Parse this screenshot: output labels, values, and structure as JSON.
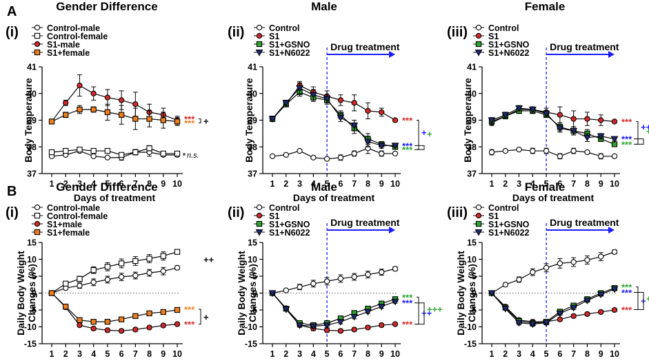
{
  "row_labels": [
    "A",
    "B"
  ],
  "column_titles": [
    "Gender Difference",
    "Male",
    "Female"
  ],
  "colors": {
    "red": "#d62828",
    "orange": "#f07f1e",
    "green": "#2aa52a",
    "navy": "#1f2a7a",
    "blue": "#1a1aff",
    "black": "#000000"
  },
  "chart_data": [
    {
      "id": "A-i",
      "type": "line",
      "panel_label": "(i)",
      "title": "Gender Difference",
      "xlabel": "Days of treatment",
      "ylabel": "Body Temperature",
      "x": [
        1,
        2,
        3,
        4,
        5,
        6,
        7,
        8,
        9,
        10
      ],
      "ylim": [
        37,
        41
      ],
      "yticks": [
        37,
        38,
        39,
        40,
        41
      ],
      "series": [
        {
          "name": "Control-male",
          "marker": "circle",
          "fill": "#ffffff",
          "values": [
            37.65,
            37.7,
            37.85,
            37.65,
            37.6,
            37.6,
            37.8,
            37.8,
            37.7,
            37.7
          ],
          "err": [
            0.05,
            0.05,
            0.05,
            0.05,
            0.05,
            0.1,
            0.1,
            0.15,
            0.05,
            0.05
          ]
        },
        {
          "name": "Control-female",
          "marker": "square",
          "fill": "#ffffff",
          "values": [
            37.8,
            37.85,
            37.9,
            37.85,
            37.85,
            37.7,
            37.8,
            37.95,
            37.75,
            37.75
          ],
          "err": [
            0.05,
            0.05,
            0.05,
            0.05,
            0.05,
            0.05,
            0.1,
            0.1,
            0.05,
            0.05
          ]
        },
        {
          "name": "S1-male",
          "marker": "circle",
          "fill": "#d62828",
          "values": [
            38.95,
            39.65,
            40.3,
            40.0,
            39.85,
            39.75,
            39.6,
            39.3,
            39.2,
            39.0
          ],
          "err": [
            0.05,
            0.1,
            0.4,
            0.25,
            0.3,
            0.35,
            0.45,
            0.3,
            0.25,
            0.15
          ]
        },
        {
          "name": "S1+female",
          "marker": "square",
          "fill": "#f07f1e",
          "values": [
            38.95,
            39.2,
            39.4,
            39.4,
            39.3,
            39.2,
            39.05,
            39.05,
            39.0,
            38.95
          ],
          "err": [
            0.05,
            0.1,
            0.15,
            0.1,
            0.3,
            0.35,
            0.4,
            0.3,
            0.3,
            0.15
          ]
        }
      ],
      "sig_labels": [
        {
          "text": "***",
          "color": "red",
          "y": 39.05
        },
        {
          "text": "***",
          "color": "orange",
          "y": 38.9
        },
        {
          "text": "+",
          "color": "black",
          "y": 38.97
        },
        {
          "text": "n.s.",
          "color": "black",
          "y": 37.72
        }
      ]
    },
    {
      "id": "A-ii",
      "type": "line",
      "panel_label": "(ii)",
      "title": "Male",
      "xlabel": "Days of treatment",
      "ylabel": "Body Temperature",
      "x": [
        1,
        2,
        3,
        4,
        5,
        6,
        7,
        8,
        9,
        10
      ],
      "ylim": [
        37,
        41
      ],
      "yticks": [
        37,
        38,
        39,
        40,
        41
      ],
      "annotation": "Drug treatment",
      "treatment_start_day": 5,
      "series": [
        {
          "name": "Control",
          "marker": "circle",
          "fill": "#ffffff",
          "values": [
            37.65,
            37.7,
            37.85,
            37.6,
            37.55,
            37.6,
            37.75,
            37.95,
            37.75,
            37.75
          ],
          "err": [
            0.05,
            0.05,
            0.05,
            0.05,
            0.05,
            0.1,
            0.1,
            0.2,
            0.1,
            0.05
          ]
        },
        {
          "name": "S1",
          "marker": "circle",
          "fill": "#d62828",
          "values": [
            39.05,
            39.6,
            40.3,
            40.05,
            39.9,
            39.75,
            39.65,
            39.35,
            39.3,
            39.0
          ],
          "err": [
            0.1,
            0.1,
            0.15,
            0.2,
            0.2,
            0.2,
            0.3,
            0.3,
            0.15,
            0.05
          ]
        },
        {
          "name": "S1+GSNO",
          "marker": "square",
          "fill": "#2aa52a",
          "values": [
            39.05,
            39.6,
            40.05,
            39.85,
            39.75,
            39.2,
            38.7,
            38.3,
            38.1,
            38.0
          ],
          "err": [
            0.1,
            0.1,
            0.15,
            0.15,
            0.15,
            0.15,
            0.2,
            0.2,
            0.1,
            0.05
          ]
        },
        {
          "name": "S1+N6022",
          "marker": "triangle-down",
          "fill": "#1f2a7a",
          "values": [
            39.05,
            39.65,
            40.2,
            39.95,
            39.8,
            39.1,
            38.8,
            38.2,
            38.05,
            38.05
          ],
          "err": [
            0.1,
            0.1,
            0.2,
            0.2,
            0.15,
            0.15,
            0.2,
            0.2,
            0.1,
            0.05
          ]
        }
      ],
      "sig_labels": [
        {
          "text": "***",
          "color": "red",
          "y": 39.0
        },
        {
          "text": "***",
          "color": "blue",
          "y": 38.05
        },
        {
          "text": "***",
          "color": "green",
          "y": 37.9
        },
        {
          "text": "+",
          "color": "blue",
          "y": 38.55
        },
        {
          "text": "+",
          "color": "green",
          "y": 38.5
        }
      ]
    },
    {
      "id": "A-iii",
      "type": "line",
      "panel_label": "(iii)",
      "title": "Female",
      "xlabel": "Days of treatment",
      "ylabel": "Body Temperature",
      "x": [
        1,
        2,
        3,
        4,
        5,
        6,
        7,
        8,
        9,
        10
      ],
      "ylim": [
        37,
        41
      ],
      "yticks": [
        37,
        38,
        39,
        40,
        41
      ],
      "annotation": "Drug treatment",
      "treatment_start_day": 5,
      "series": [
        {
          "name": "Control",
          "marker": "circle",
          "fill": "#ffffff",
          "values": [
            37.8,
            37.85,
            37.9,
            37.85,
            37.85,
            37.65,
            37.85,
            37.8,
            37.65,
            37.65
          ],
          "err": [
            0.1,
            0.05,
            0.05,
            0.1,
            0.1,
            0.1,
            0.1,
            0.05,
            0.1,
            0.05
          ]
        },
        {
          "name": "S1",
          "marker": "circle",
          "fill": "#d62828",
          "values": [
            38.9,
            39.15,
            39.4,
            39.4,
            39.3,
            39.2,
            39.05,
            39.05,
            39.0,
            38.95
          ],
          "err": [
            0.1,
            0.1,
            0.1,
            0.1,
            0.15,
            0.3,
            0.3,
            0.25,
            0.2,
            0.05
          ]
        },
        {
          "name": "S1+GSNO",
          "marker": "square",
          "fill": "#2aa52a",
          "values": [
            38.95,
            39.15,
            39.35,
            39.35,
            39.2,
            38.75,
            38.6,
            38.5,
            38.3,
            38.1
          ],
          "err": [
            0.1,
            0.1,
            0.1,
            0.1,
            0.1,
            0.15,
            0.15,
            0.15,
            0.1,
            0.05
          ]
        },
        {
          "name": "S1+N6022",
          "marker": "triangle-down",
          "fill": "#1f2a7a",
          "values": [
            39.0,
            39.2,
            39.45,
            39.4,
            39.25,
            38.7,
            38.6,
            38.35,
            38.4,
            38.3
          ],
          "err": [
            0.1,
            0.1,
            0.1,
            0.1,
            0.1,
            0.15,
            0.15,
            0.15,
            0.1,
            0.05
          ]
        }
      ],
      "sig_labels": [
        {
          "text": "***",
          "color": "red",
          "y": 38.95
        },
        {
          "text": "***",
          "color": "blue",
          "y": 38.3
        },
        {
          "text": "***",
          "color": "green",
          "y": 38.1
        },
        {
          "text": "++",
          "color": "blue",
          "y": 38.75
        },
        {
          "text": "+",
          "color": "green",
          "y": 38.6
        }
      ]
    },
    {
      "id": "B-i",
      "type": "line",
      "panel_label": "(i)",
      "title": "Gender Difference",
      "xlabel": "Days of treatment",
      "ylabel": "Daily Body Weight Changes (%)",
      "ylabel_lines": [
        "Daily Body Weight",
        "Changes (%)"
      ],
      "x": [
        1,
        2,
        3,
        4,
        5,
        6,
        7,
        8,
        9,
        10
      ],
      "ylim": [
        -15,
        15
      ],
      "yticks": [
        -15,
        -10,
        -5,
        0,
        5,
        10,
        15
      ],
      "series": [
        {
          "name": "Control-male",
          "marker": "circle",
          "fill": "#ffffff",
          "values": [
            0,
            1.5,
            2.2,
            3.2,
            4.0,
            4.8,
            5.2,
            6.0,
            6.5,
            7.5
          ],
          "err": [
            0.2,
            0.5,
            0.8,
            1.0,
            1.0,
            1.1,
            1.0,
            1.0,
            1.1,
            0.6
          ]
        },
        {
          "name": "Control-female",
          "marker": "square",
          "fill": "#ffffff",
          "values": [
            0,
            2.8,
            4.2,
            6.8,
            7.8,
            8.8,
            9.5,
            10.2,
            11.0,
            12.2
          ],
          "err": [
            0.2,
            0.5,
            0.8,
            1.0,
            1.2,
            1.3,
            1.3,
            1.2,
            1.2,
            0.7
          ]
        },
        {
          "name": "S1+male",
          "marker": "circle",
          "fill": "#d62828",
          "values": [
            0,
            -4.2,
            -9.5,
            -10.5,
            -11.0,
            -11.2,
            -10.8,
            -10.2,
            -9.6,
            -9.2
          ],
          "err": [
            0.2,
            0.4,
            0.5,
            0.5,
            0.5,
            0.5,
            0.5,
            0.5,
            0.5,
            0.5
          ]
        },
        {
          "name": "S1+female",
          "marker": "square",
          "fill": "#f07f1e",
          "values": [
            0,
            -4.0,
            -8.0,
            -8.5,
            -8.5,
            -7.8,
            -6.8,
            -6.0,
            -5.6,
            -5.0
          ],
          "err": [
            0.2,
            0.4,
            0.5,
            0.5,
            0.5,
            0.5,
            0.5,
            0.5,
            0.5,
            0.5
          ]
        }
      ],
      "sig_labels": [
        {
          "text": "++",
          "color": "black",
          "y": 10.0
        },
        {
          "text": "***",
          "color": "orange",
          "y": -4.8
        },
        {
          "text": "***",
          "color": "red",
          "y": -9.2
        },
        {
          "text": "+",
          "color": "black",
          "y": -7.0
        }
      ]
    },
    {
      "id": "B-ii",
      "type": "line",
      "panel_label": "(ii)",
      "title": "Male",
      "xlabel": "Days of treatment",
      "ylabel": "Daily Body Weight Changes (%)",
      "ylabel_lines": [
        "Daily Body Weight",
        "Changes (%)"
      ],
      "x": [
        1,
        2,
        3,
        4,
        5,
        6,
        7,
        8,
        9,
        10
      ],
      "ylim": [
        -15,
        15
      ],
      "yticks": [
        -15,
        -10,
        -5,
        0,
        5,
        10,
        15
      ],
      "annotation": "Drug treatment",
      "treatment_start_day": 5,
      "series": [
        {
          "name": "Control",
          "marker": "circle",
          "fill": "#ffffff",
          "values": [
            0,
            0.8,
            1.8,
            2.8,
            3.5,
            4.3,
            4.8,
            5.5,
            6.2,
            7.2
          ],
          "err": [
            0.2,
            0.4,
            0.8,
            1.0,
            1.1,
            1.1,
            1.0,
            1.0,
            0.9,
            0.6
          ]
        },
        {
          "name": "S1",
          "marker": "circle",
          "fill": "#d62828",
          "values": [
            0,
            -4.5,
            -9.5,
            -10.5,
            -11.0,
            -11.2,
            -10.8,
            -10.2,
            -9.5,
            -9.2
          ],
          "err": [
            0.2,
            0.4,
            0.6,
            0.6,
            0.6,
            0.5,
            0.5,
            0.5,
            0.5,
            0.5
          ]
        },
        {
          "name": "S1+GSNO",
          "marker": "square",
          "fill": "#2aa52a",
          "values": [
            0,
            -4.6,
            -8.9,
            -9.5,
            -8.9,
            -7.5,
            -5.9,
            -4.6,
            -3.1,
            -1.8
          ],
          "err": [
            0.2,
            0.4,
            0.6,
            0.6,
            0.6,
            0.6,
            0.6,
            0.5,
            0.5,
            0.5
          ]
        },
        {
          "name": "S1+N6022",
          "marker": "triangle-down",
          "fill": "#1f2a7a",
          "values": [
            0,
            -4.8,
            -9.5,
            -9.8,
            -9.5,
            -8.5,
            -7.0,
            -5.5,
            -4.0,
            -2.5
          ],
          "err": [
            0.2,
            0.4,
            0.6,
            0.6,
            0.6,
            0.6,
            0.6,
            0.5,
            0.5,
            0.5
          ]
        }
      ],
      "sig_labels": [
        {
          "text": "***",
          "color": "green",
          "y": -1.2
        },
        {
          "text": "***",
          "color": "blue",
          "y": -2.9
        },
        {
          "text": "***",
          "color": "red",
          "y": -9.2
        },
        {
          "text": "++",
          "color": "blue",
          "y": -5.8
        },
        {
          "text": "+++",
          "color": "green",
          "y": -4.7
        }
      ]
    },
    {
      "id": "B-iii",
      "type": "line",
      "panel_label": "(iii)",
      "title": "Female",
      "xlabel": "Days of treatment",
      "ylabel": "Daily Body Weight Changes (%)",
      "ylabel_lines": [
        "Daily Body Weight",
        "Changes (%)"
      ],
      "x": [
        1,
        2,
        3,
        4,
        5,
        6,
        7,
        8,
        9,
        10
      ],
      "ylim": [
        -15,
        15
      ],
      "yticks": [
        -15,
        -10,
        -5,
        0,
        5,
        10,
        15
      ],
      "annotation": "Drug treatment",
      "treatment_start_day": 5,
      "series": [
        {
          "name": "Control",
          "marker": "circle",
          "fill": "#ffffff",
          "values": [
            0,
            2.5,
            4.0,
            6.2,
            7.5,
            8.8,
            9.2,
            9.8,
            10.8,
            12.2
          ],
          "err": [
            0.2,
            0.5,
            0.8,
            1.0,
            1.2,
            1.4,
            1.3,
            1.2,
            1.2,
            0.6
          ]
        },
        {
          "name": "S1",
          "marker": "circle",
          "fill": "#d62828",
          "values": [
            0,
            -4.0,
            -8.0,
            -8.5,
            -8.5,
            -7.8,
            -6.8,
            -6.2,
            -5.6,
            -5.0
          ],
          "err": [
            0.2,
            0.4,
            0.6,
            0.6,
            0.6,
            0.5,
            0.5,
            0.5,
            0.5,
            0.5
          ]
        },
        {
          "name": "S1+GSNO",
          "marker": "square",
          "fill": "#2aa52a",
          "values": [
            0,
            -4.3,
            -8.3,
            -8.9,
            -8.5,
            -5.5,
            -3.7,
            -1.8,
            0.0,
            1.5
          ],
          "err": [
            0.2,
            0.4,
            0.6,
            0.6,
            0.6,
            0.6,
            0.6,
            0.5,
            0.5,
            0.5
          ]
        },
        {
          "name": "S1+N6022",
          "marker": "triangle-down",
          "fill": "#1f2a7a",
          "values": [
            0,
            -4.6,
            -8.8,
            -9.2,
            -8.8,
            -6.0,
            -4.3,
            -2.2,
            -0.4,
            1.2
          ],
          "err": [
            0.2,
            0.4,
            0.6,
            0.6,
            0.6,
            0.6,
            0.6,
            0.5,
            0.5,
            0.5
          ]
        }
      ],
      "sig_labels": [
        {
          "text": "***",
          "color": "green",
          "y": 1.8
        },
        {
          "text": "***",
          "color": "blue",
          "y": 0.2
        },
        {
          "text": "***",
          "color": "red",
          "y": -4.9
        },
        {
          "text": "+",
          "color": "blue",
          "y": -2.2
        },
        {
          "text": "+",
          "color": "green",
          "y": -1.5
        }
      ]
    }
  ]
}
